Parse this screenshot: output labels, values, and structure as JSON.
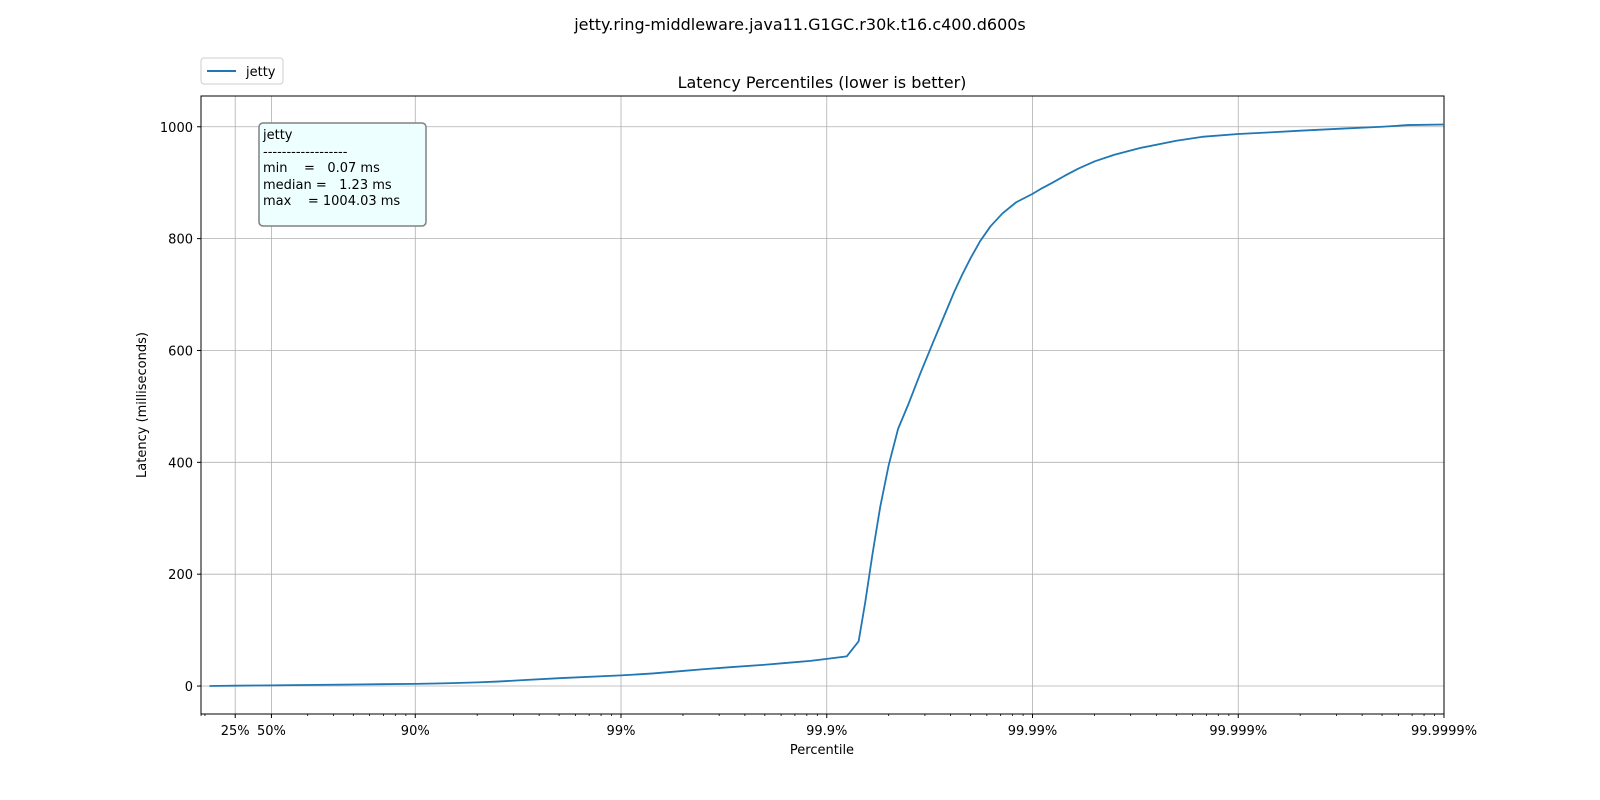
{
  "chart_data": {
    "type": "line",
    "suptitle": "jetty.ring-middleware.java11.G1GC.r30k.t16.c400.d600s",
    "title": "Latency Percentiles (lower is better)",
    "xlabel": "Percentile",
    "ylabel": "Latency (milliseconds)",
    "x_scale": "log of 1/(1-p)",
    "x_ticks": [
      {
        "label": "25%",
        "percentile": 25
      },
      {
        "label": "50%",
        "percentile": 50
      },
      {
        "label": "90%",
        "percentile": 90
      },
      {
        "label": "99%",
        "percentile": 99
      },
      {
        "label": "99.9%",
        "percentile": 99.9
      },
      {
        "label": "99.99%",
        "percentile": 99.99
      },
      {
        "label": "99.999%",
        "percentile": 99.999
      },
      {
        "label": "99.9999%",
        "percentile": 99.9999
      }
    ],
    "xlim": [
      -10,
      99.9999
    ],
    "ylim": [
      -50,
      1055
    ],
    "y_ticks": [
      0,
      200,
      400,
      600,
      800,
      1000
    ],
    "grid": true,
    "legend": {
      "placement": "top-left, above plot",
      "entries": [
        "jetty"
      ]
    },
    "stats_box": {
      "lines": [
        "jetty",
        "------------------",
        "min    =   0.07 ms",
        "median =   1.23 ms",
        "max    = 1004.03 ms"
      ]
    },
    "series": [
      {
        "name": "jetty",
        "color": "#1f77b4",
        "points": [
          [
            0,
            0.07
          ],
          [
            10,
            0.3
          ],
          [
            25,
            0.6
          ],
          [
            50,
            1.23
          ],
          [
            60,
            1.6
          ],
          [
            70,
            2.1
          ],
          [
            80,
            2.8
          ],
          [
            90,
            3.9
          ],
          [
            93,
            5.0
          ],
          [
            95,
            6.5
          ],
          [
            96,
            8.0
          ],
          [
            97,
            10.5
          ],
          [
            98,
            14.0
          ],
          [
            99,
            19.0
          ],
          [
            99.3,
            22.5
          ],
          [
            99.5,
            27.0
          ],
          [
            99.6,
            30.0
          ],
          [
            99.7,
            33.5
          ],
          [
            99.8,
            38.0
          ],
          [
            99.85,
            42.0
          ],
          [
            99.88,
            45.0
          ],
          [
            99.9,
            48.5
          ],
          [
            99.92,
            53.0
          ],
          [
            99.93,
            80.0
          ],
          [
            99.935,
            150.0
          ],
          [
            99.94,
            235.0
          ],
          [
            99.945,
            320.0
          ],
          [
            99.95,
            395.0
          ],
          [
            99.955,
            460.0
          ],
          [
            99.96,
            505.0
          ],
          [
            99.965,
            560.0
          ],
          [
            99.97,
            620.0
          ],
          [
            99.973,
            660.0
          ],
          [
            99.976,
            705.0
          ],
          [
            99.978,
            735.0
          ],
          [
            99.98,
            765.0
          ],
          [
            99.982,
            795.0
          ],
          [
            99.984,
            822.0
          ],
          [
            99.986,
            845.0
          ],
          [
            99.988,
            865.0
          ],
          [
            99.99,
            880.0
          ],
          [
            99.991,
            890.0
          ],
          [
            99.992,
            900.0
          ],
          [
            99.993,
            912.0
          ],
          [
            99.994,
            925.0
          ],
          [
            99.995,
            938.0
          ],
          [
            99.996,
            950.0
          ],
          [
            99.997,
            962.0
          ],
          [
            99.998,
            975.0
          ],
          [
            99.9985,
            982.0
          ],
          [
            99.999,
            987.0
          ],
          [
            99.9993,
            990.0
          ],
          [
            99.9995,
            993.0
          ],
          [
            99.9997,
            997.0
          ],
          [
            99.9998,
            1000.0
          ],
          [
            99.99985,
            1003.0
          ],
          [
            99.9999,
            1004.03
          ]
        ]
      }
    ]
  }
}
